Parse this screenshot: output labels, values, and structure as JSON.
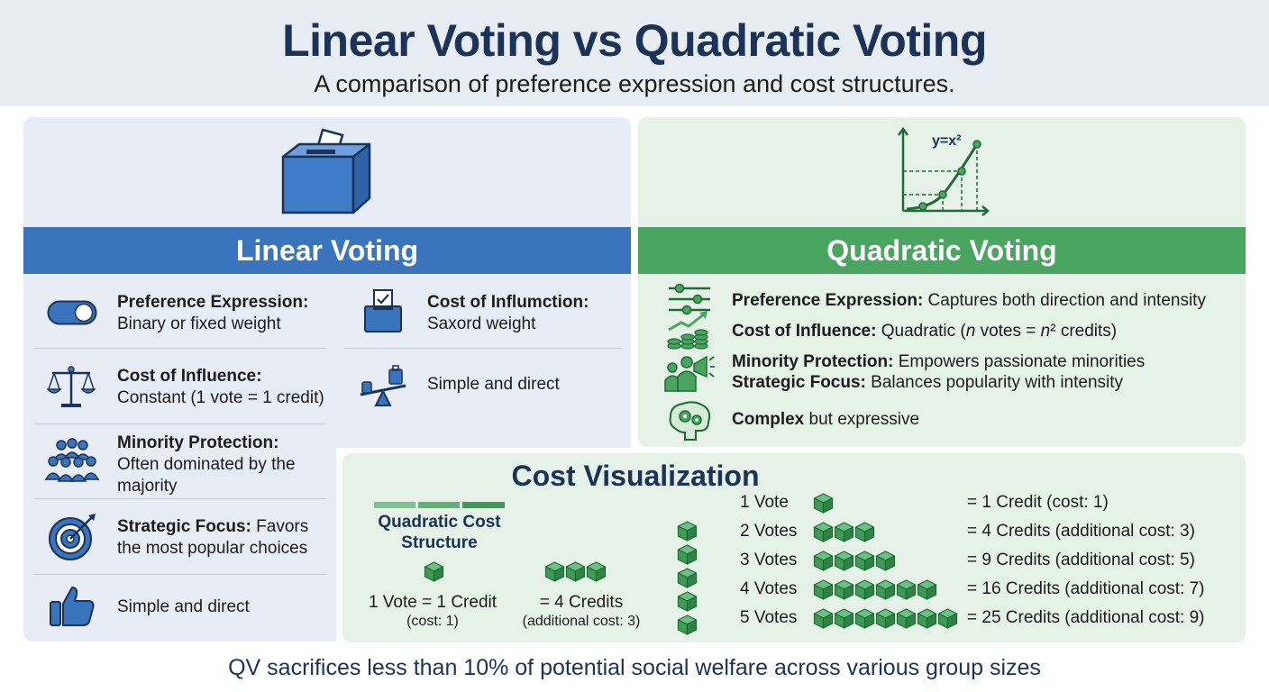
{
  "header": {
    "title": "Linear Voting vs Quadratic Voting",
    "subtitle": "A comparison of preference expression and cost structures."
  },
  "linear": {
    "heading": "Linear Voting",
    "icon": "ballot-box-icon",
    "items": [
      {
        "label": "Preference Expression:",
        "text": "Binary or fixed weight",
        "icon": "toggle-icon"
      },
      {
        "label": "Cost of Influmction:",
        "text": "Saxord weight",
        "icon": "ballot-check-icon"
      },
      {
        "label": "Cost of Influence:",
        "text": "Constant (1 vote = 1 credit)",
        "icon": "scales-icon"
      },
      {
        "label": "",
        "text": "Simple and direct",
        "icon": "seesaw-icon"
      },
      {
        "label": "Minority Protection:",
        "text": "Often dominated by the majority",
        "icon": "crowd-icon"
      },
      {
        "label": "Strategic Focus:",
        "text": "Favors the most popular choices",
        "icon": "target-icon"
      },
      {
        "label": "",
        "text": "Simple and direct",
        "icon": "thumbs-up-icon"
      }
    ]
  },
  "quadratic": {
    "heading": "Quadratic Voting",
    "graph_label": "y=x²",
    "items": [
      {
        "label": "Preference Expression:",
        "text": "Captures both direction and intensity",
        "icon": "sliders-icon"
      },
      {
        "label": "Cost of Influence:",
        "text": "Quadratic (n votes = n² credits)",
        "icon": "coins-growth-icon"
      },
      {
        "label": "Minority Protection:",
        "text": "Empowers passionate minorities",
        "icon": "megaphone-people-icon"
      },
      {
        "label": "Strategic Focus:",
        "text": "Balances popularity with intensity",
        "icon": ""
      },
      {
        "label": "Complex",
        "text": "but expressive",
        "icon": "brain-gears-icon"
      }
    ]
  },
  "cost_visualization": {
    "title": "Cost Visualization",
    "structure_title": "Quadratic Cost Structure",
    "example_one": {
      "main": "1 Vote = 1 Credit",
      "sub": "(cost: 1)"
    },
    "example_four": {
      "main": "= 4 Credits",
      "sub": "(additional cost: 3)"
    },
    "rows": [
      {
        "votes": "1 Vote",
        "cubes": 1,
        "credits": "= 1 Credit (cost: 1)"
      },
      {
        "votes": "2 Votes",
        "cubes": 3,
        "credits": "= 4 Credits (additional cost: 3)"
      },
      {
        "votes": "3 Votes",
        "cubes": 4,
        "credits": "= 9 Credits (additional cost: 5)"
      },
      {
        "votes": "4 Votes",
        "cubes": 6,
        "credits": "= 16 Credits (additional cost: 7)"
      },
      {
        "votes": "5 Votes",
        "cubes": 7,
        "credits": "= 25 Credits (additional cost: 9)"
      }
    ]
  },
  "footer": "QV sacrifices less than 10% of potential social welfare across various group sizes",
  "colors": {
    "navy": "#1b3358",
    "blue": "#3a74bd",
    "green": "#49a55f",
    "cube_green": "#3f9a55"
  }
}
